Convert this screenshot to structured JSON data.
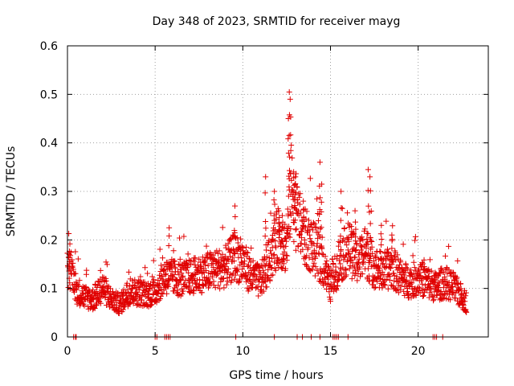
{
  "chart_data": {
    "type": "scatter",
    "title": "Day 348 of 2023, SRMTID for receiver mayg",
    "xlabel": "GPS time / hours",
    "ylabel": "SRMTID / TECUs",
    "xlim": [
      0,
      24
    ],
    "ylim": [
      0,
      0.6
    ],
    "xticks": [
      0,
      5,
      10,
      15,
      20
    ],
    "yticks": [
      0,
      0.1,
      0.2,
      0.3,
      0.4,
      0.5,
      0.6
    ],
    "grid": true,
    "marker": "+",
    "color": "#e00000",
    "time_step_hours": 0.0125,
    "time_start_hours": 0.0,
    "time_end_hours": 22.75,
    "envelope": [
      {
        "x": 0.0,
        "y": 0.14
      },
      {
        "x": 0.3,
        "y": 0.13
      },
      {
        "x": 0.5,
        "y": 0.095
      },
      {
        "x": 1.0,
        "y": 0.08
      },
      {
        "x": 1.5,
        "y": 0.075
      },
      {
        "x": 2.0,
        "y": 0.1
      },
      {
        "x": 2.5,
        "y": 0.075
      },
      {
        "x": 3.0,
        "y": 0.065
      },
      {
        "x": 3.5,
        "y": 0.09
      },
      {
        "x": 4.0,
        "y": 0.09
      },
      {
        "x": 4.5,
        "y": 0.085
      },
      {
        "x": 5.0,
        "y": 0.09
      },
      {
        "x": 5.5,
        "y": 0.12
      },
      {
        "x": 6.0,
        "y": 0.12
      },
      {
        "x": 6.5,
        "y": 0.115
      },
      {
        "x": 7.0,
        "y": 0.12
      },
      {
        "x": 7.5,
        "y": 0.125
      },
      {
        "x": 8.0,
        "y": 0.13
      },
      {
        "x": 8.5,
        "y": 0.135
      },
      {
        "x": 9.0,
        "y": 0.14
      },
      {
        "x": 9.5,
        "y": 0.16
      },
      {
        "x": 10.0,
        "y": 0.15
      },
      {
        "x": 10.5,
        "y": 0.12
      },
      {
        "x": 11.0,
        "y": 0.11
      },
      {
        "x": 11.5,
        "y": 0.15
      },
      {
        "x": 12.0,
        "y": 0.2
      },
      {
        "x": 12.5,
        "y": 0.18
      },
      {
        "x": 12.75,
        "y": 0.3
      },
      {
        "x": 13.0,
        "y": 0.25
      },
      {
        "x": 13.5,
        "y": 0.2
      },
      {
        "x": 14.0,
        "y": 0.18
      },
      {
        "x": 14.5,
        "y": 0.15
      },
      {
        "x": 15.0,
        "y": 0.1
      },
      {
        "x": 15.5,
        "y": 0.15
      },
      {
        "x": 16.0,
        "y": 0.18
      },
      {
        "x": 16.5,
        "y": 0.15
      },
      {
        "x": 17.0,
        "y": 0.17
      },
      {
        "x": 17.5,
        "y": 0.14
      },
      {
        "x": 18.0,
        "y": 0.13
      },
      {
        "x": 18.5,
        "y": 0.14
      },
      {
        "x": 19.0,
        "y": 0.12
      },
      {
        "x": 19.5,
        "y": 0.11
      },
      {
        "x": 20.0,
        "y": 0.12
      },
      {
        "x": 20.5,
        "y": 0.11
      },
      {
        "x": 21.0,
        "y": 0.1
      },
      {
        "x": 21.5,
        "y": 0.11
      },
      {
        "x": 22.0,
        "y": 0.1
      },
      {
        "x": 22.5,
        "y": 0.08
      },
      {
        "x": 22.75,
        "y": 0.07
      }
    ],
    "spikes": [
      {
        "x": 9.55,
        "y": 0.27
      },
      {
        "x": 11.3,
        "y": 0.33
      },
      {
        "x": 11.8,
        "y": 0.3
      },
      {
        "x": 12.05,
        "y": 0.26
      },
      {
        "x": 12.25,
        "y": 0.25
      },
      {
        "x": 12.6,
        "y": 0.45
      },
      {
        "x": 12.65,
        "y": 0.505
      },
      {
        "x": 12.7,
        "y": 0.49
      },
      {
        "x": 12.9,
        "y": 0.34
      },
      {
        "x": 13.0,
        "y": 0.33
      },
      {
        "x": 13.45,
        "y": 0.28
      },
      {
        "x": 14.4,
        "y": 0.36
      },
      {
        "x": 14.5,
        "y": 0.315
      },
      {
        "x": 15.6,
        "y": 0.3
      },
      {
        "x": 16.4,
        "y": 0.26
      },
      {
        "x": 17.15,
        "y": 0.345
      },
      {
        "x": 17.25,
        "y": 0.33
      },
      {
        "x": 17.9,
        "y": 0.23
      },
      {
        "x": 18.5,
        "y": 0.21
      },
      {
        "x": 5.8,
        "y": 0.225
      },
      {
        "x": 0.1,
        "y": 0.17
      }
    ],
    "zero_values_x": [
      0.35,
      0.45,
      0.5,
      5.0,
      5.1,
      5.55,
      5.65,
      5.75,
      5.85,
      9.6,
      11.8,
      13.1,
      13.4,
      13.9,
      14.4,
      15.15,
      15.25,
      15.35,
      15.45,
      16.0,
      20.85,
      20.95,
      21.05,
      21.4
    ]
  }
}
